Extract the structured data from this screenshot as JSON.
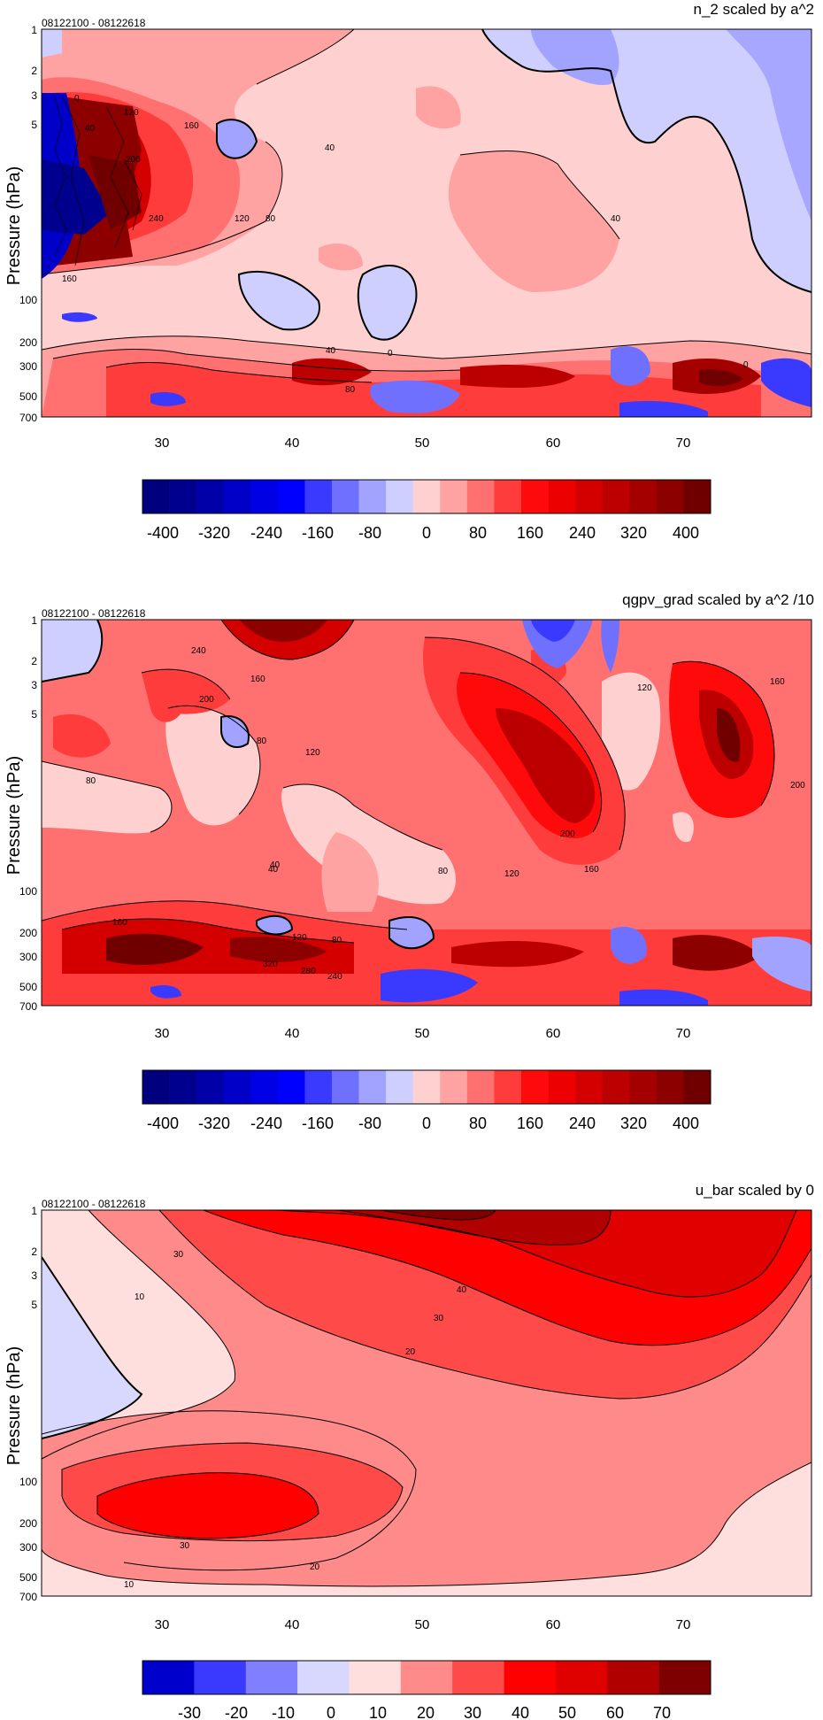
{
  "panels": [
    {
      "title": "n_2 scaled by a^2",
      "date_range": "08122100 - 08122618",
      "ylabel": "Pressure (hPa)",
      "yticks": [
        "1",
        "2",
        "3",
        "5",
        "100",
        "200",
        "300",
        "500",
        "700"
      ],
      "xticks": [
        "30",
        "40",
        "50",
        "60",
        "70"
      ],
      "colorbar_labels": [
        "-400",
        "-320",
        "-240",
        "-160",
        "-80",
        "0",
        "80",
        "160",
        "240",
        "320",
        "400"
      ],
      "contour_labels": [
        "0",
        "40",
        "120",
        "160",
        "200",
        "240",
        "120",
        "80",
        "40",
        "40",
        "160",
        "40",
        "0",
        "80",
        "0"
      ]
    },
    {
      "title": "qgpv_grad scaled by a^2 /10",
      "date_range": "08122100 - 08122618",
      "ylabel": "Pressure (hPa)",
      "yticks": [
        "1",
        "2",
        "3",
        "5",
        "100",
        "200",
        "300",
        "500",
        "700"
      ],
      "xticks": [
        "30",
        "40",
        "50",
        "60",
        "70"
      ],
      "colorbar_labels": [
        "-400",
        "-320",
        "-240",
        "-160",
        "-80",
        "0",
        "80",
        "160",
        "240",
        "320",
        "400"
      ],
      "contour_labels": [
        "240",
        "200",
        "160",
        "80",
        "120",
        "80",
        "40",
        "80",
        "120",
        "200",
        "160",
        "160",
        "200",
        "120",
        "120",
        "160",
        "320",
        "280",
        "240",
        "80",
        "40"
      ]
    },
    {
      "title": "u_bar scaled by 0",
      "date_range": "08122100 - 08122618",
      "ylabel": "Pressure (hPa)",
      "yticks": [
        "1",
        "2",
        "3",
        "5",
        "100",
        "200",
        "300",
        "500",
        "700"
      ],
      "xticks": [
        "30",
        "40",
        "50",
        "60",
        "70"
      ],
      "colorbar_labels": [
        "-30",
        "-20",
        "-10",
        "0",
        "10",
        "20",
        "30",
        "40",
        "50",
        "60",
        "70"
      ],
      "contour_labels": [
        "30",
        "10",
        "40",
        "30",
        "20",
        "30",
        "20",
        "10"
      ]
    }
  ],
  "colors": {
    "diverging_400": [
      "#00007f",
      "#00008f",
      "#0000a8",
      "#0000c8",
      "#0000e4",
      "#0000ff",
      "#3a3aff",
      "#7070ff",
      "#a2a2ff",
      "#cfcfff",
      "#ffd0d0",
      "#ffa2a2",
      "#ff7070",
      "#ff3c3c",
      "#ff0a0a",
      "#ec0000",
      "#d40000",
      "#bc0000",
      "#a40000",
      "#8c0000",
      "#700000"
    ],
    "ubar": [
      "#0000cc",
      "#3a3aff",
      "#7f7fff",
      "#d8d8ff",
      "#ffdede",
      "#ff8a8a",
      "#ff4a4a",
      "#ff0000",
      "#e00000",
      "#b00000",
      "#7f0000"
    ]
  },
  "chart_data": [
    {
      "type": "heatmap",
      "title": "n_2 scaled by a^2",
      "subtitle": "08122100 - 08122618",
      "ylabel": "Pressure (hPa)",
      "x_ticks": [
        30,
        40,
        50,
        60,
        70
      ],
      "xlim": [
        21,
        80
      ],
      "y_ticks": [
        1,
        2,
        3,
        5,
        100,
        200,
        300,
        500,
        700
      ],
      "colorbar": [
        -400,
        -320,
        -240,
        -160,
        -80,
        0,
        80,
        160,
        240,
        320,
        400
      ],
      "contour_labels": [
        0,
        40,
        120,
        160,
        200,
        240,
        120,
        80,
        40,
        40,
        160,
        40,
        0,
        80,
        0
      ]
    },
    {
      "type": "heatmap",
      "title": "qgpv_grad scaled by a^2 /10",
      "subtitle": "08122100 - 08122618",
      "ylabel": "Pressure (hPa)",
      "x_ticks": [
        30,
        40,
        50,
        60,
        70
      ],
      "xlim": [
        21,
        80
      ],
      "y_ticks": [
        1,
        2,
        3,
        5,
        100,
        200,
        300,
        500,
        700
      ],
      "colorbar": [
        -400,
        -320,
        -240,
        -160,
        -80,
        0,
        80,
        160,
        240,
        320,
        400
      ],
      "contour_labels": [
        240,
        200,
        160,
        80,
        120,
        80,
        40,
        80,
        120,
        200,
        160,
        160,
        200,
        120,
        120,
        160,
        320,
        280,
        240,
        80,
        40
      ]
    },
    {
      "type": "heatmap",
      "title": "u_bar scaled by 0",
      "subtitle": "08122100 - 08122618",
      "ylabel": "Pressure (hPa)",
      "x_ticks": [
        30,
        40,
        50,
        60,
        70
      ],
      "xlim": [
        21,
        80
      ],
      "y_ticks": [
        1,
        2,
        3,
        5,
        100,
        200,
        300,
        500,
        700
      ],
      "colorbar": [
        -30,
        -20,
        -10,
        0,
        10,
        20,
        30,
        40,
        50,
        60,
        70
      ],
      "contour_labels": [
        30,
        10,
        40,
        30,
        20,
        30,
        20,
        10
      ]
    }
  ]
}
